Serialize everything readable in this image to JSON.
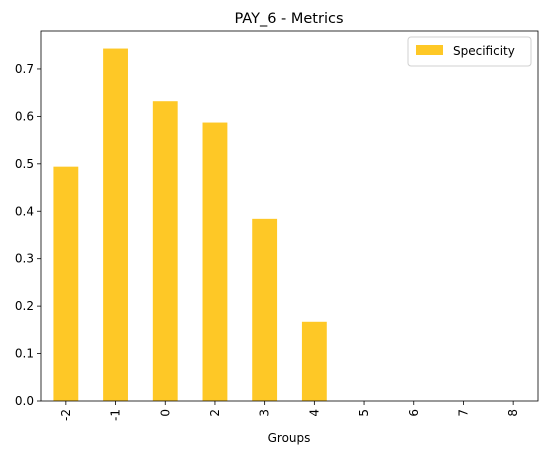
{
  "chart_data": {
    "type": "bar",
    "title": "PAY_6 - Metrics",
    "xlabel": "Groups",
    "ylabel": "",
    "categories": [
      "-2",
      "-1",
      "0",
      "2",
      "3",
      "4",
      "5",
      "6",
      "7",
      "8"
    ],
    "series": [
      {
        "name": "Specificity",
        "color": "#fec826",
        "values": [
          0.494,
          0.743,
          0.632,
          0.587,
          0.384,
          0.167,
          0,
          0,
          0,
          0
        ]
      }
    ],
    "ylim": [
      0,
      0.78
    ],
    "yticks": [
      "0.0",
      "0.1",
      "0.2",
      "0.3",
      "0.4",
      "0.5",
      "0.6",
      "0.7"
    ],
    "legend": "top-right",
    "grid": false
  }
}
